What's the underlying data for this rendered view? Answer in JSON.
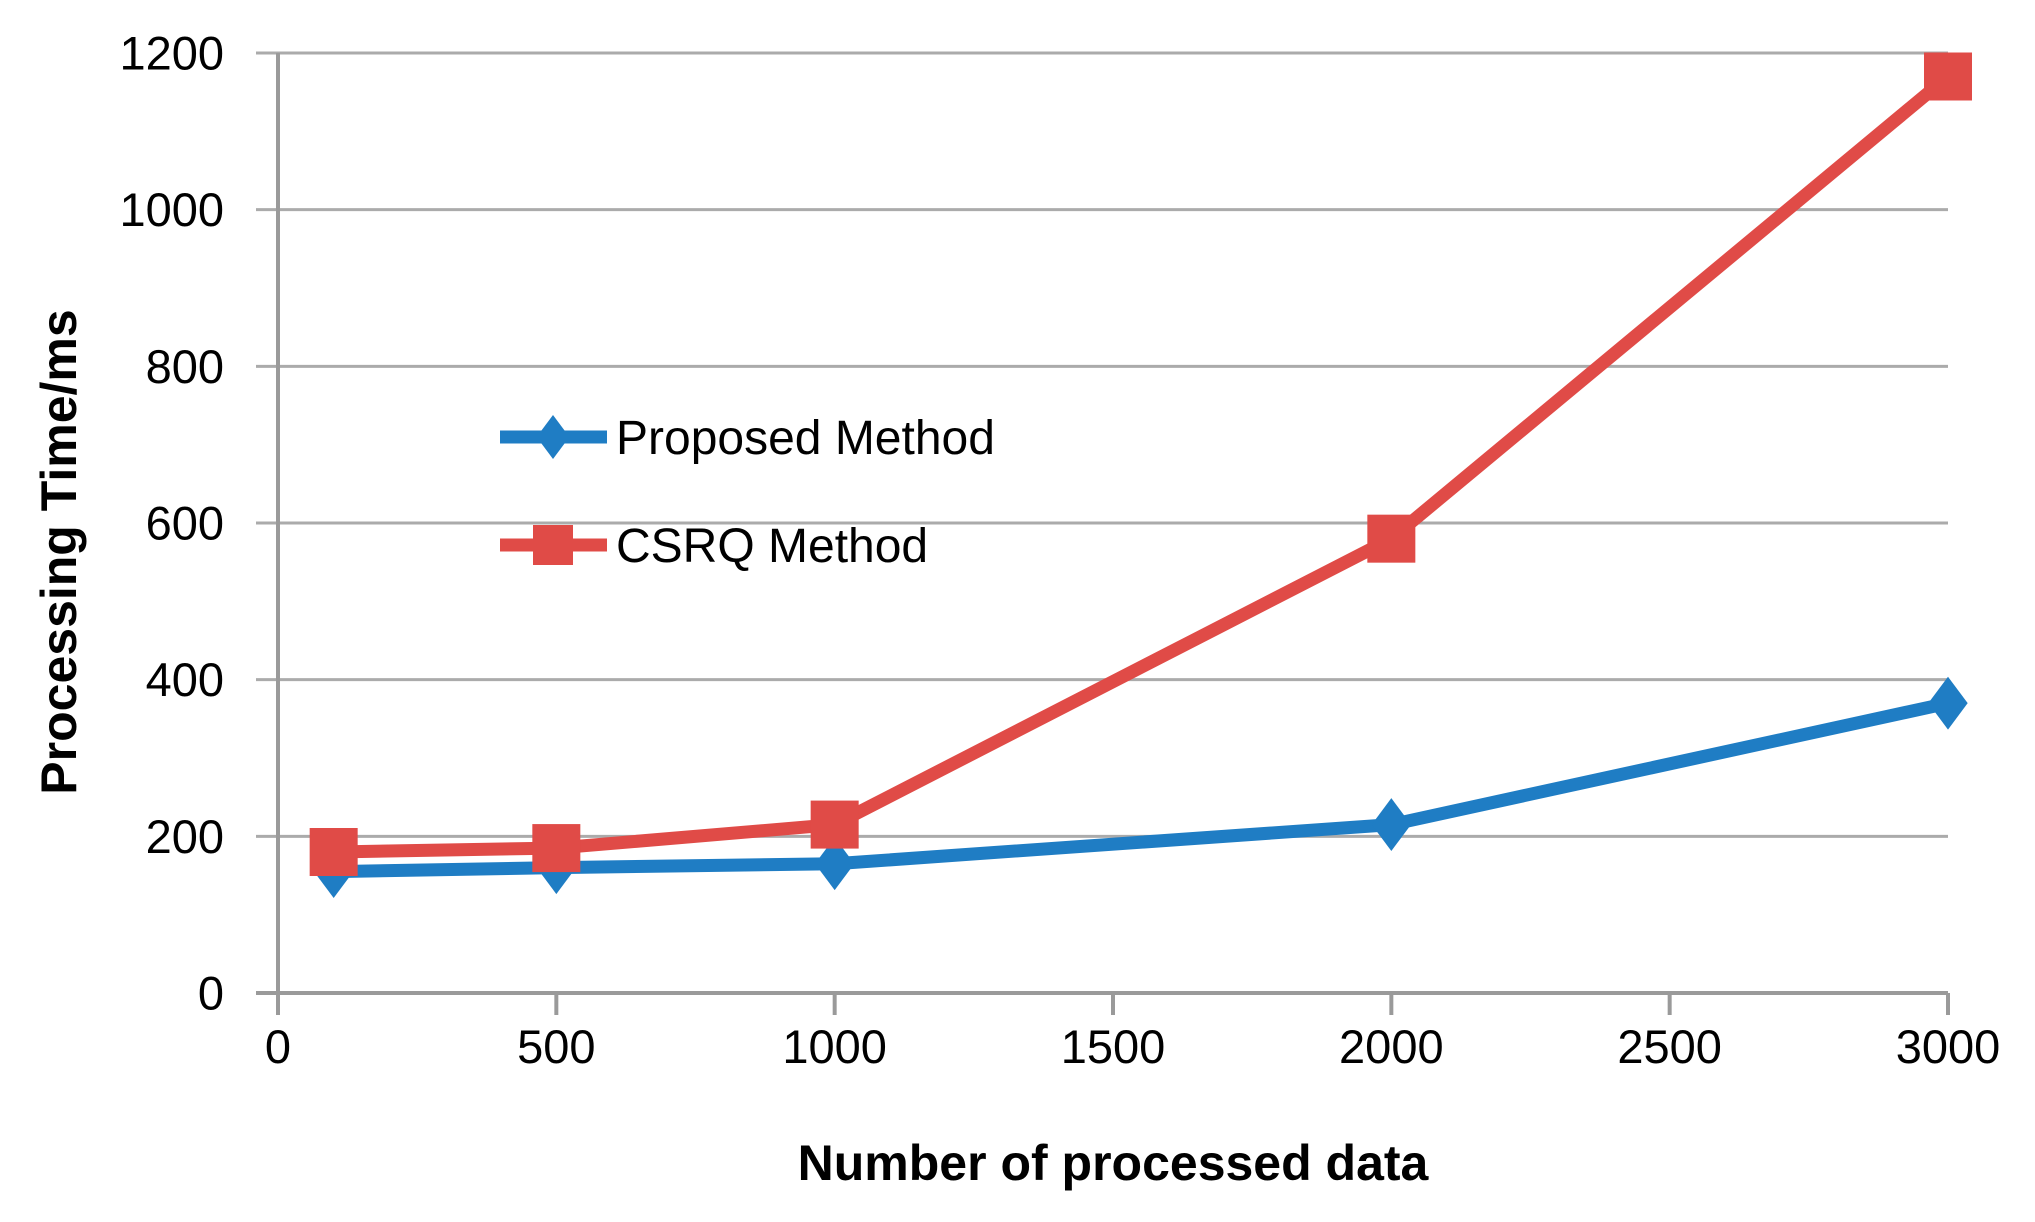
{
  "chart_data": {
    "type": "line",
    "title": "",
    "xlabel": "Number of processed data",
    "ylabel": "Processing Time/ms",
    "xlim": [
      0,
      3000
    ],
    "ylim": [
      0,
      1200
    ],
    "x_ticks": [
      0,
      500,
      1000,
      1500,
      2000,
      2500,
      3000
    ],
    "x_tick_labels": [
      "0",
      "500",
      "1000",
      "1500",
      "2000",
      "2500",
      "3000"
    ],
    "y_ticks": [
      0,
      200,
      400,
      600,
      800,
      1000,
      1200
    ],
    "y_tick_labels": [
      "0",
      "200",
      "400",
      "600",
      "800",
      "1000",
      "1200"
    ],
    "grid": "horizontal",
    "legend_position": "inside-upper-left",
    "series": [
      {
        "name": "Proposed Method",
        "color": "#1F7DC4",
        "marker": "diamond",
        "x": [
          100,
          500,
          1000,
          2000,
          3000
        ],
        "y": [
          155,
          160,
          165,
          215,
          370
        ]
      },
      {
        "name": "CSRQ Method",
        "color": "#E04B47",
        "marker": "square",
        "x": [
          100,
          500,
          1000,
          2000,
          3000
        ],
        "y": [
          180,
          185,
          215,
          580,
          1170
        ]
      }
    ]
  },
  "colors": {
    "background": "#FFFFFF",
    "gridline": "#ABABAB",
    "axis": "#9A9A9A",
    "text": "#000000"
  }
}
